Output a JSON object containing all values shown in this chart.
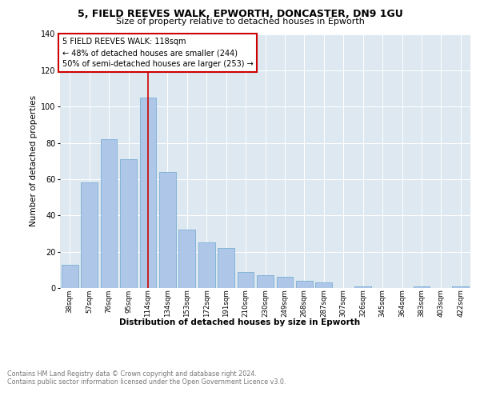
{
  "title1": "5, FIELD REEVES WALK, EPWORTH, DONCASTER, DN9 1GU",
  "title2": "Size of property relative to detached houses in Epworth",
  "xlabel": "Distribution of detached houses by size in Epworth",
  "ylabel": "Number of detached properties",
  "categories": [
    "38sqm",
    "57sqm",
    "76sqm",
    "95sqm",
    "114sqm",
    "134sqm",
    "153sqm",
    "172sqm",
    "191sqm",
    "210sqm",
    "230sqm",
    "249sqm",
    "268sqm",
    "287sqm",
    "307sqm",
    "326sqm",
    "345sqm",
    "364sqm",
    "383sqm",
    "403sqm",
    "422sqm"
  ],
  "values": [
    13,
    58,
    82,
    71,
    105,
    64,
    32,
    25,
    22,
    9,
    7,
    6,
    4,
    3,
    0,
    1,
    0,
    0,
    1,
    0,
    1
  ],
  "bar_color": "#aec6e8",
  "bar_edge_color": "#7aafd4",
  "highlight_line_color": "#cc0000",
  "highlight_line_index": 4,
  "annotation_line1": "5 FIELD REEVES WALK: 118sqm",
  "annotation_line2": "← 48% of detached houses are smaller (244)",
  "annotation_line3": "50% of semi-detached houses are larger (253) →",
  "annotation_box_edge_color": "#cc0000",
  "background_color": "#dde8f0",
  "ylim": [
    0,
    140
  ],
  "yticks": [
    0,
    20,
    40,
    60,
    80,
    100,
    120,
    140
  ],
  "footer_line1": "Contains HM Land Registry data © Crown copyright and database right 2024.",
  "footer_line2": "Contains public sector information licensed under the Open Government Licence v3.0."
}
